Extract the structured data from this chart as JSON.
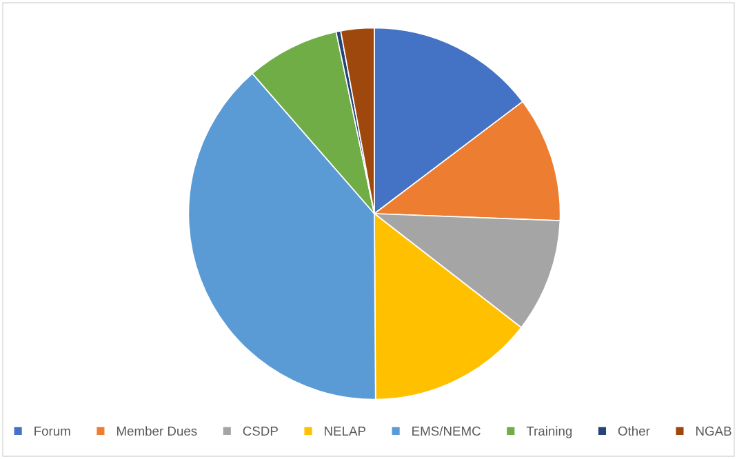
{
  "chart_data": {
    "type": "pie",
    "categories": [
      "Forum",
      "Member Dues",
      "CSDP",
      "NELAP",
      "EMS/NEMC",
      "Training",
      "Other",
      "NGAB"
    ],
    "values": [
      14.7,
      10.9,
      9.9,
      14.4,
      38.7,
      8.1,
      0.4,
      2.9
    ],
    "colors": [
      "#4472c4",
      "#ed7d31",
      "#a5a5a5",
      "#ffc000",
      "#5b9bd5",
      "#70ad47",
      "#264478",
      "#9e480e"
    ],
    "legend": "bottom"
  }
}
